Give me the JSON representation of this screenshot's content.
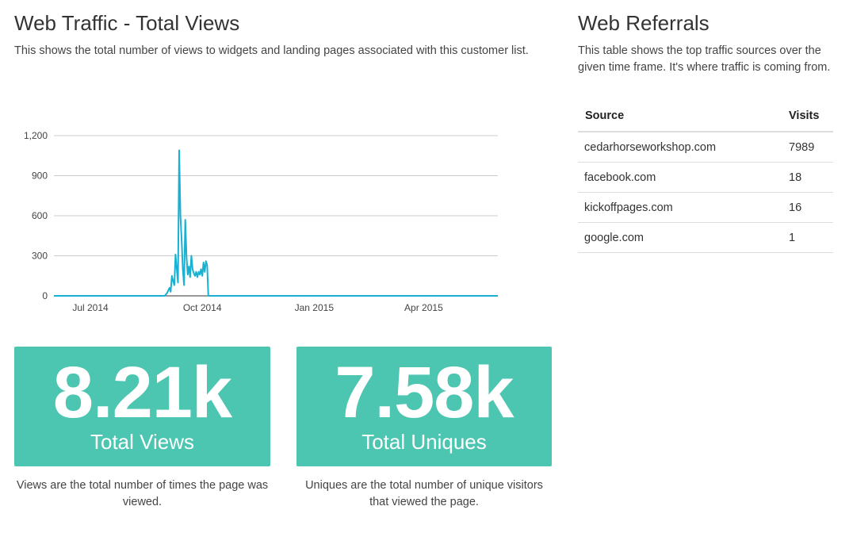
{
  "traffic": {
    "title": "Web Traffic - Total Views",
    "description": "This shows the total number of views to widgets and landing pages associated with this customer list."
  },
  "chart_data": {
    "type": "line",
    "title": "",
    "xlabel": "",
    "ylabel": "",
    "ylim": [
      0,
      1200
    ],
    "yticks": [
      0,
      300,
      600,
      900,
      1200
    ],
    "ytick_labels": [
      "0",
      "300",
      "600",
      "900",
      "1,200"
    ],
    "xlim": [
      "2014-06-01",
      "2015-06-01"
    ],
    "xticks": [
      "2014-07-01",
      "2014-10-01",
      "2015-01-01",
      "2015-04-01"
    ],
    "xtick_labels": [
      "Jul 2014",
      "Oct 2014",
      "Jan 2015",
      "Apr 2015"
    ],
    "grid": true,
    "color": "#1ab0d1",
    "series": [
      {
        "name": "Total Views",
        "x": [
          "2014-06-01",
          "2014-08-31",
          "2014-09-02",
          "2014-09-04",
          "2014-09-05",
          "2014-09-06",
          "2014-09-07",
          "2014-09-08",
          "2014-09-09",
          "2014-09-10",
          "2014-09-11",
          "2014-09-12",
          "2014-09-13",
          "2014-09-14",
          "2014-09-15",
          "2014-09-16",
          "2014-09-17",
          "2014-09-18",
          "2014-09-19",
          "2014-09-20",
          "2014-09-21",
          "2014-09-22",
          "2014-09-23",
          "2014-09-24",
          "2014-09-25",
          "2014-09-26",
          "2014-09-27",
          "2014-09-28",
          "2014-09-29",
          "2014-09-30",
          "2014-10-01",
          "2014-10-02",
          "2014-10-03",
          "2014-10-04",
          "2014-10-05",
          "2014-10-06",
          "2014-10-07",
          "2014-10-08",
          "2014-10-09",
          "2014-10-10",
          "2014-10-11",
          "2014-10-12",
          "2015-06-01"
        ],
        "values": [
          0,
          0,
          20,
          60,
          30,
          150,
          110,
          80,
          310,
          200,
          100,
          1090,
          600,
          420,
          200,
          80,
          570,
          300,
          160,
          220,
          140,
          300,
          200,
          170,
          150,
          180,
          140,
          180,
          160,
          200,
          150,
          250,
          180,
          260,
          230,
          0,
          0,
          0,
          0,
          0,
          0,
          0,
          0
        ]
      }
    ]
  },
  "stats": [
    {
      "value": "8.21k",
      "label": "Total Views",
      "note": "Views are the total number of times the page was viewed."
    },
    {
      "value": "7.58k",
      "label": "Total Uniques",
      "note": "Uniques are the total number of unique visitors that viewed the page."
    }
  ],
  "referrals": {
    "title": "Web Referrals",
    "description": "This table shows the top traffic sources over the given time frame. It's where traffic is coming from.",
    "columns": [
      "Source",
      "Visits"
    ],
    "rows": [
      {
        "source": "cedarhorseworkshop.com",
        "visits": "7989"
      },
      {
        "source": "facebook.com",
        "visits": "18"
      },
      {
        "source": "kickoffpages.com",
        "visits": "16"
      },
      {
        "source": "google.com",
        "visits": "1"
      }
    ]
  },
  "colors": {
    "accent": "#4cc5b1",
    "line": "#1ab0d1"
  }
}
